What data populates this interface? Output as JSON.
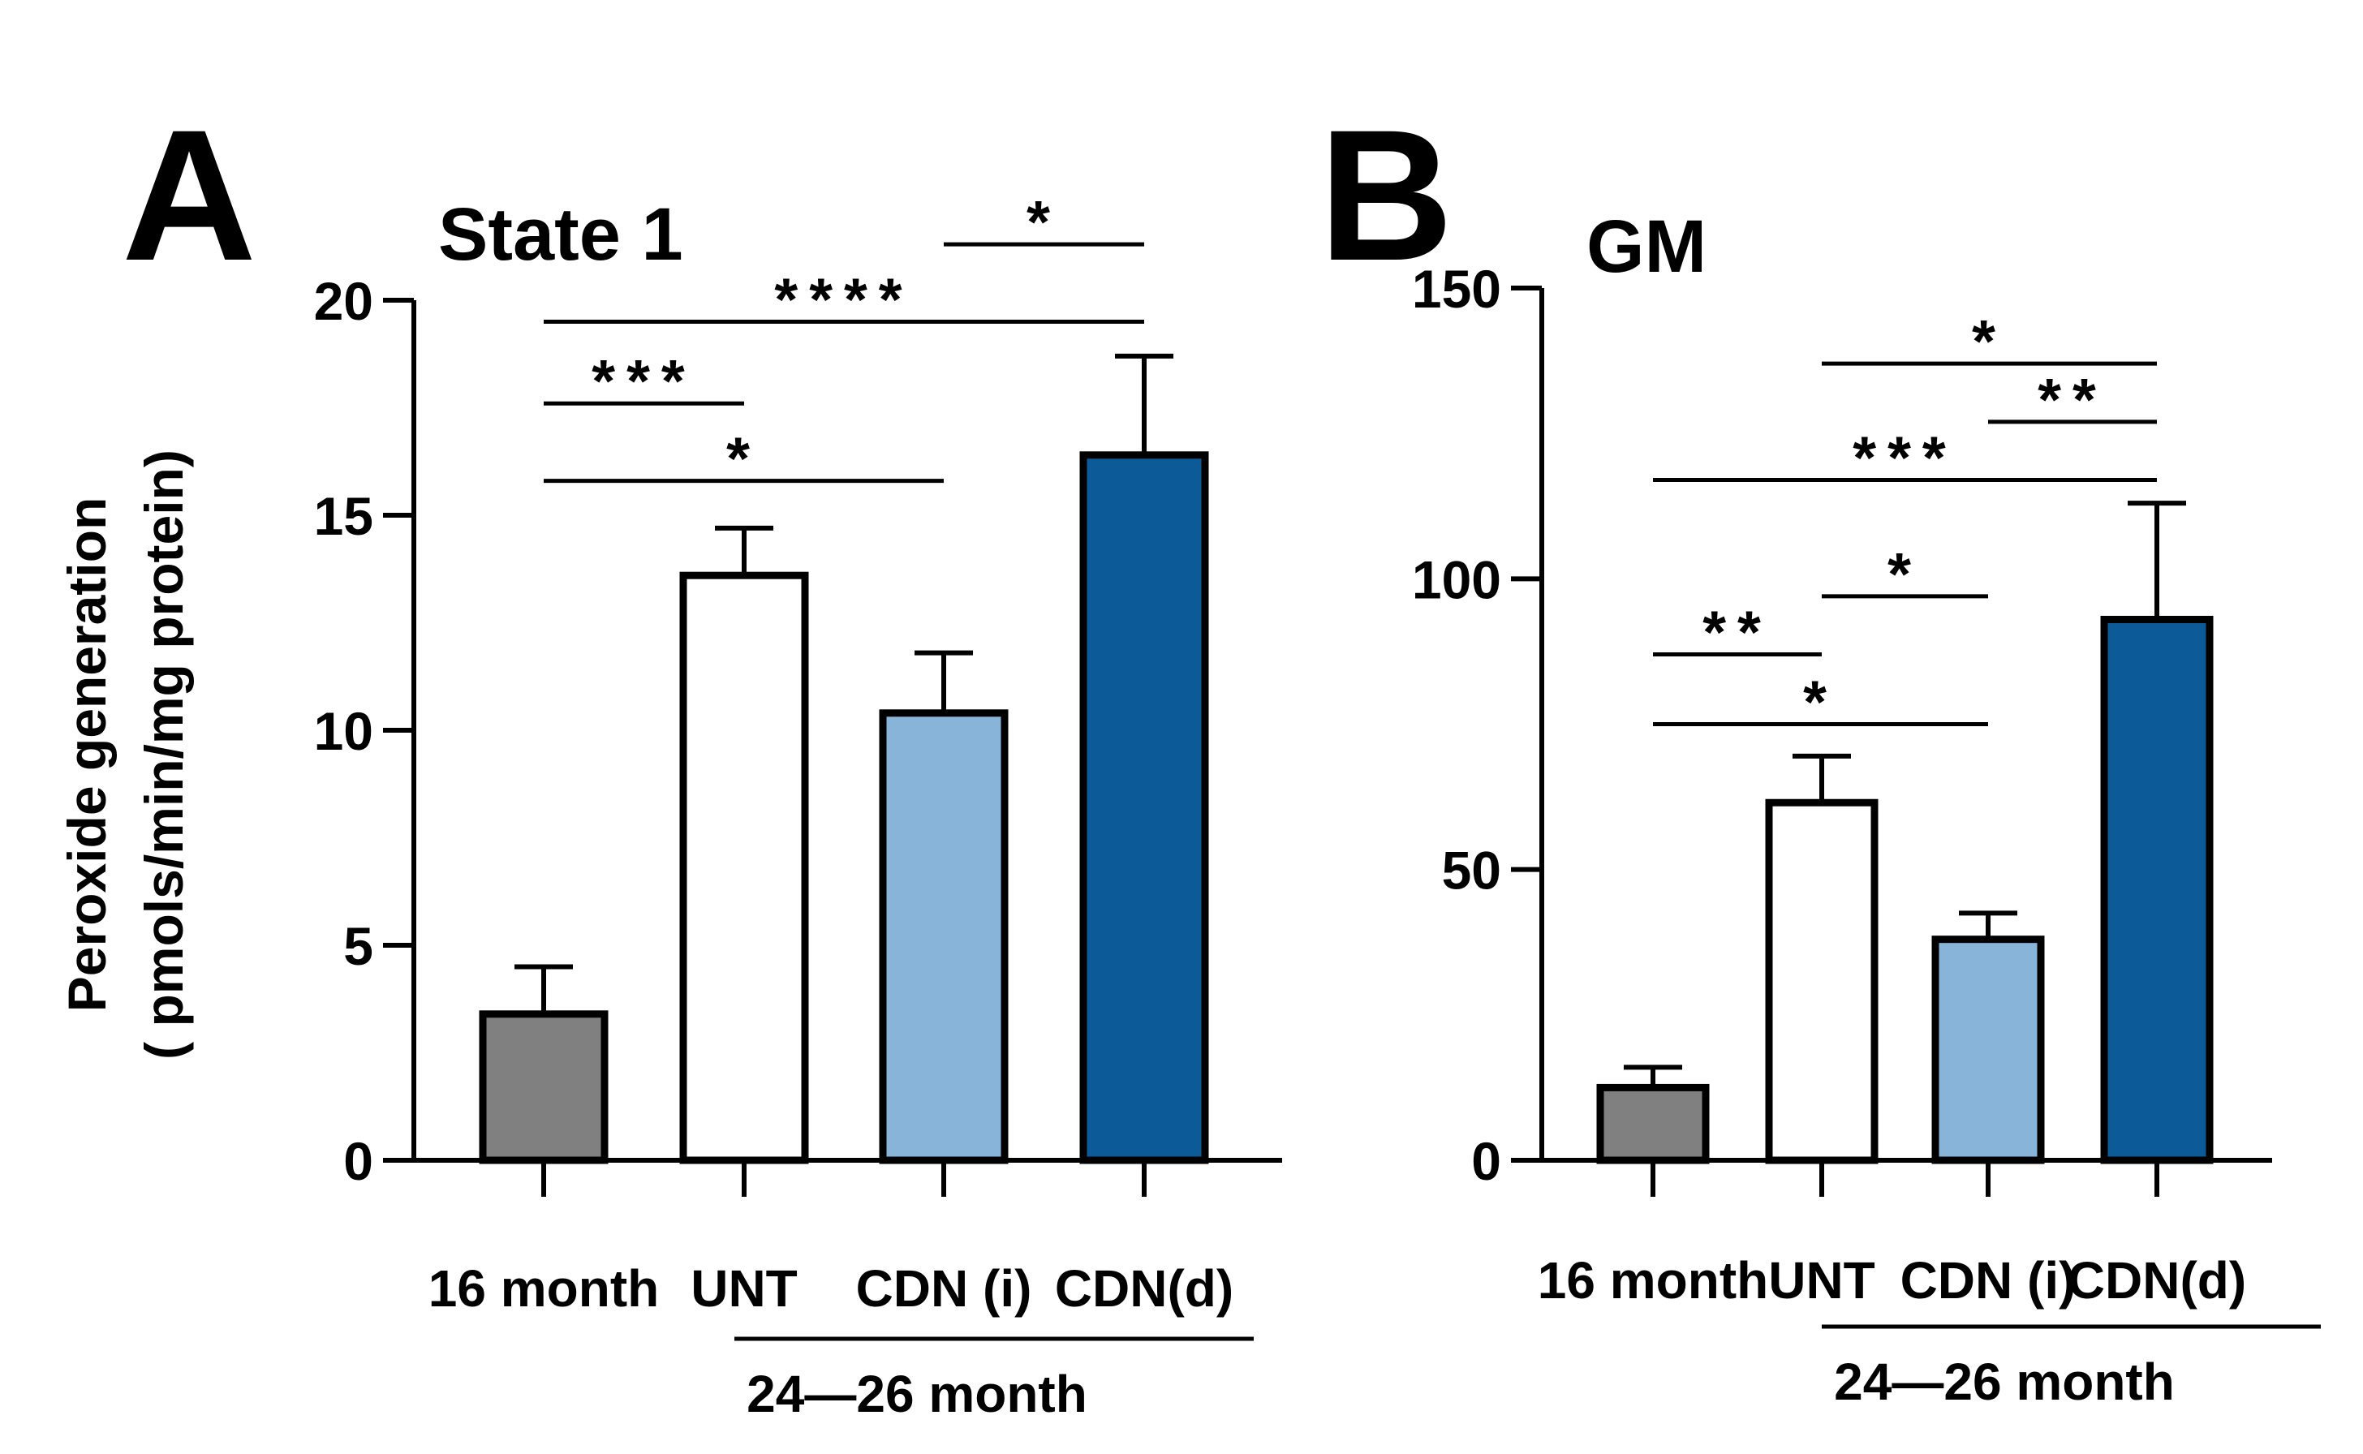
{
  "colors": {
    "bar_16_month": "#808080",
    "bar_unt": "#ffffff",
    "bar_cdn_i": "#89b4da",
    "bar_cdn_d": "#0c5b98",
    "stroke": "#000000"
  },
  "shared": {
    "y_axis_label_line1": "Peroxide generation",
    "y_axis_label_line2": "( pmols/min/mg protein)",
    "group_label": "24—26 month"
  },
  "chart_data": [
    {
      "type": "bar",
      "panel_letter": "A",
      "title": "State 1",
      "categories": [
        "16 month",
        "UNT",
        "CDN (i)",
        "CDN(d)"
      ],
      "values": [
        3.4,
        13.6,
        10.4,
        16.4
      ],
      "errors": [
        1.1,
        1.1,
        1.4,
        2.3
      ],
      "ylim": [
        0,
        20
      ],
      "yticks": [
        0,
        5,
        10,
        15,
        20
      ],
      "ytick_labels": [
        "0",
        "5",
        "10",
        "15",
        "20"
      ],
      "xlabel": "",
      "ylabel": "Peroxide generation ( pmols/min/mg protein)",
      "group_span": [
        1,
        3
      ],
      "significance": [
        {
          "from": 2,
          "to": 3,
          "level": 21.3,
          "label": "*"
        },
        {
          "from": 0,
          "to": 3,
          "level": 19.5,
          "label": "****"
        },
        {
          "from": 0,
          "to": 1,
          "level": 17.6,
          "label": "***"
        },
        {
          "from": 0,
          "to": 2,
          "level": 15.8,
          "label": "*"
        }
      ]
    },
    {
      "type": "bar",
      "panel_letter": "B",
      "title": "GM",
      "categories": [
        "16 month",
        "UNT",
        "CDN (i)",
        "CDN(d)"
      ],
      "values": [
        12.5,
        61.5,
        38,
        93
      ],
      "errors": [
        3.5,
        8.0,
        4.5,
        20
      ],
      "ylim": [
        0,
        150
      ],
      "yticks": [
        0,
        50,
        100,
        150
      ],
      "ytick_labels": [
        "0",
        "50",
        "100",
        "150"
      ],
      "xlabel": "",
      "ylabel": "",
      "group_span": [
        1,
        3
      ],
      "significance": [
        {
          "from": 1,
          "to": 3,
          "level": 137,
          "label": "*"
        },
        {
          "from": 2,
          "to": 3,
          "level": 127,
          "label": "**"
        },
        {
          "from": 0,
          "to": 3,
          "level": 117,
          "label": "***"
        },
        {
          "from": 1,
          "to": 2,
          "level": 97,
          "label": "*"
        },
        {
          "from": 0,
          "to": 1,
          "level": 87,
          "label": "**"
        },
        {
          "from": 0,
          "to": 2,
          "level": 75,
          "label": "*"
        }
      ]
    }
  ]
}
